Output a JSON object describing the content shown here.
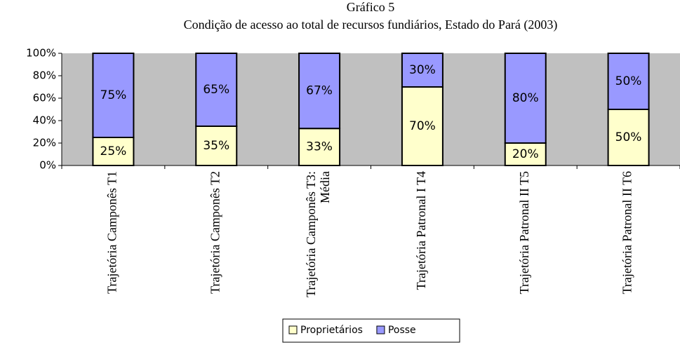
{
  "chart_data": {
    "type": "stacked_bar_100",
    "title": "Gráfico 5",
    "subtitle": "Condição de acesso ao total de recursos fundiários, Estado do Pará (2003)",
    "categories": [
      "Trajetória Camponês T1",
      "Trajetória Camponês T2",
      "Trajetória Camponês T3:\nMédia",
      "Trajetória Patronal I T4",
      "Trajetória Patronal II T5",
      "Trajetória Patronal II T6"
    ],
    "series": [
      {
        "name": "Proprietários",
        "color": "#ffffcc",
        "values": [
          25,
          35,
          33,
          70,
          20,
          50
        ],
        "value_labels": [
          "25%",
          "35%",
          "33%",
          "70%",
          "20%",
          "50%"
        ]
      },
      {
        "name": "Posse",
        "color": "#9999ff",
        "values": [
          75,
          65,
          67,
          30,
          80,
          50
        ],
        "value_labels": [
          "75%",
          "65%",
          "67%",
          "30%",
          "80%",
          "50%"
        ]
      }
    ],
    "ylim": [
      0,
      100
    ],
    "yticks": [
      {
        "value": 0,
        "label": "0%"
      },
      {
        "value": 20,
        "label": "20%"
      },
      {
        "value": 40,
        "label": "40%"
      },
      {
        "value": 60,
        "label": "60%"
      },
      {
        "value": 80,
        "label": "80%"
      },
      {
        "value": 100,
        "label": "100%"
      }
    ],
    "plot_background": "#c0c0c0",
    "legend": "bottom"
  }
}
